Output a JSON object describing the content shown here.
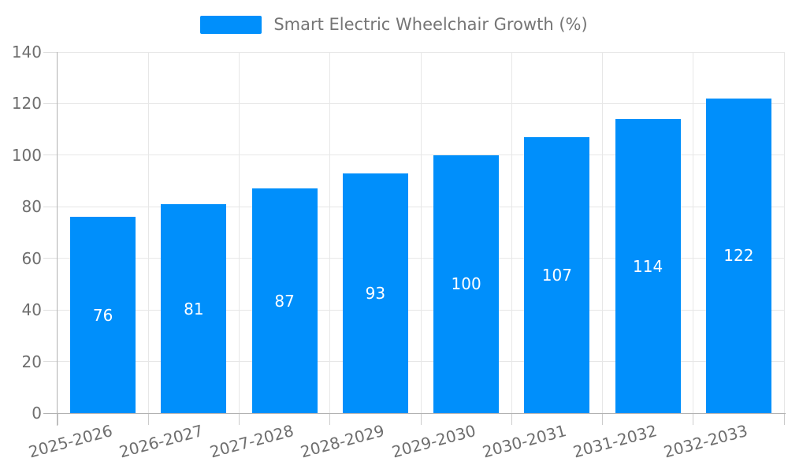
{
  "legend": {
    "label": "Smart Electric Wheelchair Growth (%)"
  },
  "chart_data": {
    "type": "bar",
    "title": "Smart Electric Wheelchair Growth (%)",
    "categories": [
      "2025-2026",
      "2026-2027",
      "2027-2028",
      "2028-2029",
      "2029-2030",
      "2030-2031",
      "2031-2032",
      "2032-2033"
    ],
    "values": [
      76,
      81,
      87,
      93,
      100,
      107,
      114,
      122
    ],
    "data_labels": [
      "76",
      "81",
      "87",
      "93",
      "100",
      "107",
      "114",
      "122"
    ],
    "xlabel": "",
    "ylabel": "",
    "ylim": [
      0,
      140
    ],
    "yticks": [
      0,
      20,
      40,
      60,
      80,
      100,
      120,
      140
    ],
    "grid": true,
    "legend_position": "top",
    "colors": {
      "bar": "#008FFB",
      "grid": "#e7e7e7",
      "axis": "#b2b2b2",
      "tick_label": "#6e6e6e",
      "legend_text": "#757575",
      "data_label": "#ffffff",
      "background": "#ffffff"
    }
  }
}
